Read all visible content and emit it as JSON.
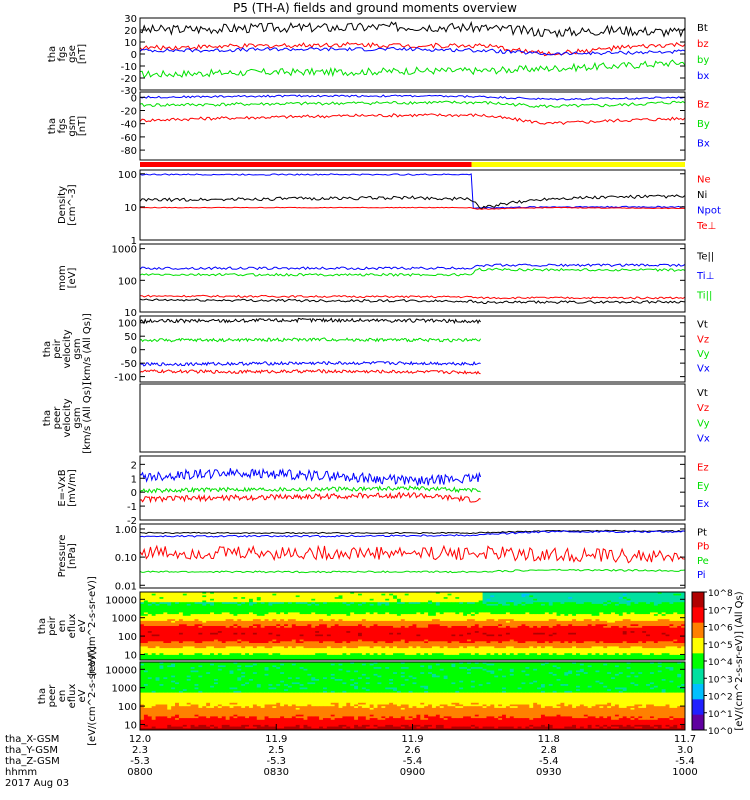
{
  "title": "P5 (TH-A) fields and ground moments overview",
  "colors": {
    "black": "#000000",
    "red": "#ff0000",
    "green": "#00e000",
    "blue": "#0000ff",
    "yellow": "#ffff00"
  },
  "x_axis": {
    "rows": [
      {
        "label": "tha_X-GSM",
        "values": [
          "12.0",
          "11.9",
          "11.9",
          "11.8",
          "11.7"
        ]
      },
      {
        "label": "tha_Y-GSM",
        "values": [
          "2.3",
          "2.5",
          "2.6",
          "2.8",
          "3.0"
        ]
      },
      {
        "label": "tha_Z-GSM",
        "values": [
          "-5.3",
          "-5.3",
          "-5.4",
          "-5.4",
          "-5.4"
        ]
      },
      {
        "label": "hhmm",
        "values": [
          "0800",
          "0830",
          "0900",
          "0930",
          "1000"
        ]
      }
    ],
    "date": "2017 Aug 03"
  },
  "colorbar": {
    "label": "[eV/(cm^2-s-sr-eV)] (All Qs)",
    "ticks": [
      "10^8",
      "10^7",
      "10^6",
      "10^5",
      "10^4",
      "10^3",
      "10^2",
      "10^1",
      "10^0"
    ]
  },
  "chart_data": [
    {
      "type": "line",
      "ylabel": [
        "tha",
        "fgs",
        "gse",
        "[nT]"
      ],
      "ticks": [
        "30",
        "20",
        "10",
        "0",
        "-10",
        "-20",
        "-30"
      ],
      "ylim": [
        -30,
        30
      ],
      "legend": [
        {
          "name": "Bt",
          "color": "#000000"
        },
        {
          "name": "bz",
          "color": "#ff0000"
        },
        {
          "name": "by",
          "color": "#00e000"
        },
        {
          "name": "bx",
          "color": "#0000ff"
        }
      ],
      "series": [
        {
          "name": "Bt",
          "color": "#000000",
          "x": [
            0,
            15,
            30,
            45,
            60,
            75,
            90,
            105,
            120
          ],
          "y": [
            20,
            21,
            22,
            22,
            23,
            22,
            18,
            20,
            18
          ],
          "noise": 4
        },
        {
          "name": "bz",
          "color": "#ff0000",
          "x": [
            0,
            15,
            30,
            45,
            60,
            75,
            90,
            105,
            120
          ],
          "y": [
            5,
            6,
            7,
            8,
            7,
            7,
            0,
            5,
            8
          ],
          "noise": 2
        },
        {
          "name": "by",
          "color": "#00e000",
          "x": [
            0,
            15,
            30,
            45,
            60,
            75,
            90,
            105,
            120
          ],
          "y": [
            -17,
            -16,
            -15,
            -15,
            -14,
            -14,
            -12,
            -10,
            -7
          ],
          "noise": 3
        },
        {
          "name": "bx",
          "color": "#0000ff",
          "x": [
            0,
            15,
            30,
            45,
            60,
            75,
            90,
            105,
            120
          ],
          "y": [
            3,
            3,
            4,
            4,
            4,
            3,
            0,
            1,
            2
          ],
          "noise": 1.5
        }
      ]
    },
    {
      "type": "line",
      "ylabel": [
        "tha",
        "fgs",
        "gsm",
        "[nT]"
      ],
      "ticks": [
        "0",
        "-20",
        "-40",
        "-60",
        "-80"
      ],
      "ylim": [
        -95,
        8
      ],
      "legend": [
        {
          "name": "Bz",
          "color": "#ff0000"
        },
        {
          "name": "By",
          "color": "#00e000"
        },
        {
          "name": "Bx",
          "color": "#0000ff"
        }
      ],
      "series": [
        {
          "name": "Bx",
          "color": "#0000ff",
          "x": [
            0,
            15,
            30,
            45,
            60,
            75,
            90,
            105,
            120
          ],
          "y": [
            0,
            1,
            2,
            2,
            2,
            1,
            -3,
            -2,
            0
          ],
          "noise": 1.5
        },
        {
          "name": "By",
          "color": "#00e000",
          "x": [
            0,
            15,
            30,
            45,
            60,
            75,
            90,
            105,
            120
          ],
          "y": [
            -12,
            -11,
            -10,
            -9,
            -8,
            -8,
            -14,
            -12,
            -7
          ],
          "noise": 2.5
        },
        {
          "name": "Bz",
          "color": "#ff0000",
          "x": [
            0,
            15,
            30,
            45,
            60,
            75,
            90,
            105,
            120
          ],
          "y": [
            -35,
            -32,
            -30,
            -28,
            -27,
            -27,
            -40,
            -35,
            -32
          ],
          "noise": 2.5
        }
      ]
    },
    {
      "type": "line",
      "log": true,
      "ylabel": [
        "Density",
        "[cm^-3]"
      ],
      "ticks": [
        "100",
        "10",
        "1"
      ],
      "ylim": [
        1,
        130
      ],
      "legend": [
        {
          "name": "Ne",
          "color": "#ff0000"
        },
        {
          "name": "Ni",
          "color": "#000000"
        },
        {
          "name": "Npot",
          "color": "#0000ff"
        },
        {
          "name": "Te⊥",
          "color": "#ff0000"
        }
      ],
      "series": [
        {
          "name": "Npot",
          "color": "#0000ff",
          "x": [
            0,
            73,
            73.1,
            74,
            90,
            120
          ],
          "y": [
            95,
            95,
            9.2,
            9.3,
            10,
            10
          ],
          "noise": 0.02
        },
        {
          "name": "Ni",
          "color": "#000000",
          "x": [
            0,
            20,
            40,
            60,
            73,
            75,
            90,
            105,
            120
          ],
          "y": [
            16,
            17,
            18,
            19,
            17,
            9,
            18,
            20,
            21
          ],
          "noise": 0.05
        },
        {
          "name": "Ne",
          "color": "#ff0000",
          "x": [
            0,
            73,
            74,
            90,
            120
          ],
          "y": [
            9.5,
            9.5,
            8.5,
            9.5,
            9
          ],
          "noise": 0.01
        }
      ]
    },
    {
      "type": "line",
      "log": true,
      "ylabel": [
        "mom",
        "[eV]"
      ],
      "ticks": [
        "1000",
        "100",
        "10"
      ],
      "ylim": [
        10,
        1400
      ],
      "legend": [
        {
          "name": "Te||",
          "color": "#000000"
        },
        {
          "name": "Ti⊥",
          "color": "#0000ff"
        },
        {
          "name": "Ti||",
          "color": "#00e000"
        }
      ],
      "series": [
        {
          "name": "Ti⊥",
          "color": "#0000ff",
          "x": [
            0,
            73,
            74,
            120
          ],
          "y": [
            240,
            240,
            300,
            300
          ],
          "noise": 0.04
        },
        {
          "name": "Ti||",
          "color": "#00e000",
          "x": [
            0,
            73,
            74,
            120
          ],
          "y": [
            150,
            150,
            220,
            210
          ],
          "noise": 0.04
        },
        {
          "name": "Te⊥",
          "color": "#ff0000",
          "x": [
            0,
            73,
            74,
            120
          ],
          "y": [
            32,
            30,
            28,
            28
          ],
          "noise": 0.03
        },
        {
          "name": "Te||",
          "color": "#000000",
          "x": [
            0,
            73,
            74,
            120
          ],
          "y": [
            24,
            22,
            20,
            21
          ],
          "noise": 0.04
        }
      ]
    },
    {
      "type": "line",
      "ylabel": [
        "tha",
        "peir",
        "velocity",
        "gsm",
        "[km/s (All Qs)]"
      ],
      "ticks": [
        "100",
        "50",
        "0",
        "-50",
        "-100"
      ],
      "ylim": [
        -120,
        125
      ],
      "legend": [
        {
          "name": "Vt",
          "color": "#000000"
        },
        {
          "name": "Vz",
          "color": "#ff0000"
        },
        {
          "name": "Vy",
          "color": "#00e000"
        },
        {
          "name": "Vx",
          "color": "#0000ff"
        }
      ],
      "series": [
        {
          "name": "Vt",
          "color": "#000000",
          "x": [
            0,
            20,
            40,
            60,
            75
          ],
          "y": [
            105,
            108,
            110,
            108,
            104
          ],
          "noise": 7
        },
        {
          "name": "Vy",
          "color": "#00e000",
          "x": [
            0,
            20,
            40,
            60,
            75
          ],
          "y": [
            35,
            36,
            38,
            36,
            35
          ],
          "noise": 6
        },
        {
          "name": "Vx",
          "color": "#0000ff",
          "x": [
            0,
            20,
            40,
            60,
            75
          ],
          "y": [
            -55,
            -52,
            -50,
            -50,
            -52
          ],
          "noise": 6
        },
        {
          "name": "Vz",
          "color": "#ff0000",
          "x": [
            0,
            20,
            40,
            60,
            75
          ],
          "y": [
            -80,
            -82,
            -80,
            -82,
            -84
          ],
          "noise": 6
        }
      ]
    },
    {
      "type": "line",
      "ylabel": [
        "tha",
        "peer",
        "velocity",
        "gsm",
        "[km/s (All Qs)]"
      ],
      "ticks": [],
      "ylim": [
        -120,
        125
      ],
      "legend": [
        {
          "name": "Vt",
          "color": "#000000"
        },
        {
          "name": "Vz",
          "color": "#ff0000"
        },
        {
          "name": "Vy",
          "color": "#00e000"
        },
        {
          "name": "Vx",
          "color": "#0000ff"
        }
      ],
      "series": []
    },
    {
      "type": "line",
      "ylabel": [
        "E=-VxB",
        "[mV/m]"
      ],
      "ticks": [
        "2",
        "1",
        "0",
        "-1",
        "-2"
      ],
      "ylim": [
        -2,
        2.6
      ],
      "legend": [
        {
          "name": "Ez",
          "color": "#ff0000"
        },
        {
          "name": "Ey",
          "color": "#00e000"
        },
        {
          "name": "Ex",
          "color": "#0000ff"
        }
      ],
      "series": [
        {
          "name": "Ex",
          "color": "#0000ff",
          "x": [
            0,
            20,
            40,
            60,
            75
          ],
          "y": [
            1.1,
            1.4,
            1.2,
            0.8,
            1.0
          ],
          "noise": 0.35
        },
        {
          "name": "Ey",
          "color": "#00e000",
          "x": [
            0,
            20,
            40,
            60,
            75
          ],
          "y": [
            0.1,
            0.2,
            0.2,
            0.3,
            0.1
          ],
          "noise": 0.15
        },
        {
          "name": "Ez",
          "color": "#ff0000",
          "x": [
            0,
            20,
            40,
            60,
            75
          ],
          "y": [
            -0.5,
            -0.4,
            -0.3,
            -0.2,
            -0.6
          ],
          "noise": 0.2
        }
      ]
    },
    {
      "type": "line",
      "log": true,
      "ylabel": [
        "Pressure",
        "[nPa]"
      ],
      "ticks": [
        "1.00",
        "0.10",
        "0.01"
      ],
      "ylim": [
        0.008,
        1.5
      ],
      "legend": [
        {
          "name": "Pt",
          "color": "#000000"
        },
        {
          "name": "Pb",
          "color": "#ff0000"
        },
        {
          "name": "Pe",
          "color": "#00e000"
        },
        {
          "name": "Pi",
          "color": "#0000ff"
        }
      ],
      "series": [
        {
          "name": "Pt",
          "color": "#000000",
          "x": [
            0,
            40,
            73,
            90,
            120
          ],
          "y": [
            0.72,
            0.72,
            0.72,
            0.85,
            0.85
          ],
          "noise": 0.02
        },
        {
          "name": "Pi",
          "color": "#0000ff",
          "x": [
            0,
            40,
            73,
            90,
            120
          ],
          "y": [
            0.55,
            0.55,
            0.6,
            0.8,
            0.8
          ],
          "noise": 0.03
        },
        {
          "name": "Pb",
          "color": "#ff0000",
          "x": [
            0,
            40,
            73,
            90,
            120
          ],
          "y": [
            0.15,
            0.14,
            0.14,
            0.12,
            0.1
          ],
          "noise": 0.25
        },
        {
          "name": "Pe",
          "color": "#00e000",
          "x": [
            0,
            40,
            73,
            90,
            120
          ],
          "y": [
            0.03,
            0.03,
            0.03,
            0.035,
            0.033
          ],
          "noise": 0.03
        }
      ]
    },
    {
      "type": "heatmap",
      "ylabel": [
        "tha",
        "peir",
        "en",
        "eflux",
        "eV",
        "[eV/(cm^2-s-sr-eV)]"
      ],
      "ticks": [
        "10000",
        "1000",
        "100",
        "10"
      ],
      "ylim": [
        5,
        25000
      ]
    },
    {
      "type": "heatmap",
      "ylabel": [
        "tha",
        "peer",
        "en",
        "eflux",
        "eV",
        "[eV/(cm^2-s-sr-eV)]"
      ],
      "ticks": [
        "10000",
        "1000",
        "100",
        "10"
      ],
      "ylim": [
        5,
        25000
      ]
    }
  ]
}
